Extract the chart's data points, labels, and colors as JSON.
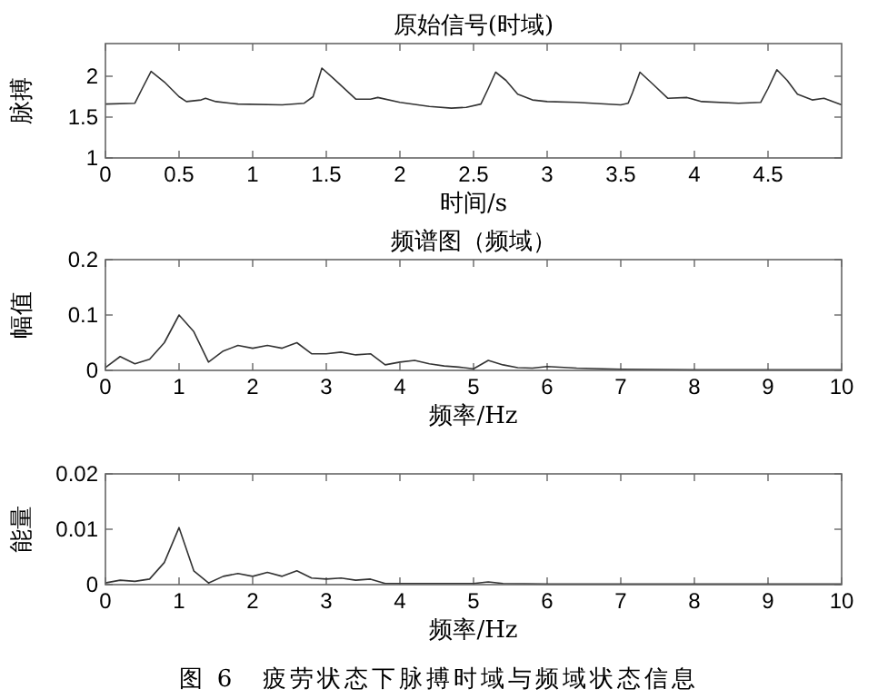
{
  "chart_data": [
    {
      "type": "line",
      "title": "原始信号(时域)",
      "xlabel": "时间/s",
      "ylabel": "脉搏",
      "xlim": [
        0,
        5
      ],
      "xticks": [
        0,
        0.5,
        1,
        1.5,
        2,
        2.5,
        3,
        3.5,
        4,
        4.5
      ],
      "ylim": [
        1,
        2.4
      ],
      "yticks": [
        1,
        1.5,
        2
      ],
      "grid": false,
      "series": [
        {
          "color": "#333333",
          "x": [
            0,
            0.2,
            0.25,
            0.31,
            0.4,
            0.5,
            0.55,
            0.65,
            0.68,
            0.75,
            0.9,
            1.2,
            1.35,
            1.41,
            1.47,
            1.55,
            1.7,
            1.8,
            1.85,
            2.0,
            2.2,
            2.35,
            2.45,
            2.55,
            2.6,
            2.65,
            2.72,
            2.8,
            2.9,
            3.0,
            3.2,
            3.5,
            3.55,
            3.58,
            3.63,
            3.72,
            3.82,
            3.95,
            4.05,
            4.3,
            4.45,
            4.5,
            4.56,
            4.63,
            4.7,
            4.8,
            4.88,
            5.0
          ],
          "values": [
            1.66,
            1.67,
            1.85,
            2.06,
            1.93,
            1.75,
            1.69,
            1.71,
            1.73,
            1.69,
            1.66,
            1.65,
            1.67,
            1.75,
            2.1,
            1.97,
            1.72,
            1.72,
            1.74,
            1.68,
            1.63,
            1.61,
            1.62,
            1.66,
            1.85,
            2.05,
            1.95,
            1.78,
            1.71,
            1.69,
            1.68,
            1.65,
            1.67,
            1.8,
            2.05,
            1.9,
            1.73,
            1.74,
            1.69,
            1.67,
            1.68,
            1.85,
            2.08,
            1.95,
            1.78,
            1.71,
            1.73,
            1.65
          ]
        }
      ]
    },
    {
      "type": "line",
      "title": "频谱图（频域）",
      "xlabel": "频率/Hz",
      "ylabel": "幅值",
      "xlim": [
        0,
        10
      ],
      "xticks": [
        0,
        1,
        2,
        3,
        4,
        5,
        6,
        7,
        8,
        9,
        10
      ],
      "ylim": [
        0,
        0.2
      ],
      "yticks": [
        0,
        0.1,
        0.2
      ],
      "grid": false,
      "series": [
        {
          "color": "#333333",
          "x": [
            0,
            0.2,
            0.4,
            0.6,
            0.8,
            1.0,
            1.2,
            1.4,
            1.6,
            1.8,
            2.0,
            2.2,
            2.4,
            2.6,
            2.8,
            3.0,
            3.2,
            3.4,
            3.6,
            3.8,
            4.0,
            4.2,
            4.4,
            4.6,
            4.8,
            5.0,
            5.2,
            5.4,
            5.6,
            5.8,
            6.0,
            6.4,
            7.0,
            8.0,
            9.0,
            10
          ],
          "values": [
            0.005,
            0.025,
            0.012,
            0.02,
            0.05,
            0.1,
            0.07,
            0.015,
            0.035,
            0.045,
            0.04,
            0.045,
            0.04,
            0.05,
            0.03,
            0.03,
            0.033,
            0.028,
            0.03,
            0.01,
            0.015,
            0.018,
            0.012,
            0.008,
            0.006,
            0.003,
            0.018,
            0.01,
            0.005,
            0.004,
            0.007,
            0.004,
            0.002,
            0.001,
            0.001,
            0.001
          ]
        }
      ]
    },
    {
      "type": "line",
      "xlabel": "频率/Hz",
      "ylabel": "能量",
      "xlim": [
        0,
        10
      ],
      "xticks": [
        0,
        1,
        2,
        3,
        4,
        5,
        6,
        7,
        8,
        9,
        10
      ],
      "ylim": [
        0,
        0.02
      ],
      "yticks": [
        0,
        0.01,
        0.02
      ],
      "grid": false,
      "annotations": [
        "图 6　疲劳状态下脉搏时域与频域状态信息"
      ],
      "series": [
        {
          "color": "#333333",
          "x": [
            0,
            0.2,
            0.4,
            0.6,
            0.8,
            1.0,
            1.2,
            1.4,
            1.6,
            1.8,
            2.0,
            2.2,
            2.4,
            2.6,
            2.8,
            3.0,
            3.2,
            3.4,
            3.6,
            3.8,
            4.0,
            5.0,
            5.2,
            5.4,
            6,
            10
          ],
          "values": [
            0.0003,
            0.0008,
            0.0006,
            0.001,
            0.004,
            0.0103,
            0.0025,
            0.0003,
            0.0015,
            0.002,
            0.0015,
            0.0022,
            0.0015,
            0.0025,
            0.0012,
            0.001,
            0.0012,
            0.0008,
            0.001,
            0.0002,
            0.0002,
            0.0002,
            0.0005,
            0.0002,
            0.0001,
            0.0001
          ]
        }
      ]
    }
  ]
}
